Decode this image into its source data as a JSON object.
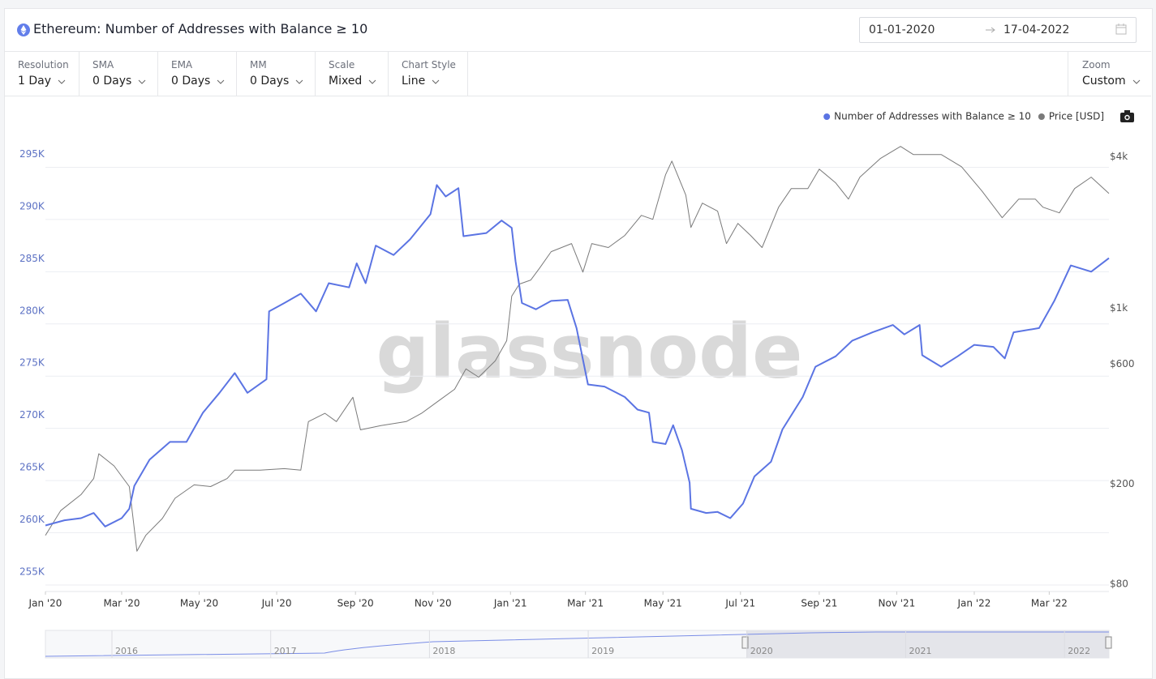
{
  "header": {
    "title": "Ethereum: Number of Addresses with Balance ≥ 10"
  },
  "date_range": {
    "start": "01-01-2020",
    "end": "17-04-2022"
  },
  "toolbar": [
    {
      "label": "Resolution",
      "value": "1 Day"
    },
    {
      "label": "SMA",
      "value": "0 Days"
    },
    {
      "label": "EMA",
      "value": "0 Days"
    },
    {
      "label": "MM",
      "value": "0 Days"
    },
    {
      "label": "Scale",
      "value": "Mixed"
    },
    {
      "label": "Chart Style",
      "value": "Line"
    }
  ],
  "zoom": {
    "label": "Zoom",
    "value": "Custom"
  },
  "watermark": "glassnode",
  "navigator": {
    "labels": [
      "2016",
      "2017",
      "2018",
      "2019",
      "2020",
      "2021",
      "2022"
    ]
  },
  "chart_data": {
    "type": "line",
    "xlim": [
      "2020-01-01",
      "2022-04-17"
    ],
    "xticks": [
      {
        "value": "2020-01-01",
        "label": "Jan '20"
      },
      {
        "value": "2020-03-01",
        "label": "Mar '20"
      },
      {
        "value": "2020-05-01",
        "label": "May '20"
      },
      {
        "value": "2020-07-01",
        "label": "Jul '20"
      },
      {
        "value": "2020-09-01",
        "label": "Sep '20"
      },
      {
        "value": "2020-11-01",
        "label": "Nov '20"
      },
      {
        "value": "2021-01-01",
        "label": "Jan '21"
      },
      {
        "value": "2021-03-01",
        "label": "Mar '21"
      },
      {
        "value": "2021-05-01",
        "label": "May '21"
      },
      {
        "value": "2021-07-01",
        "label": "Jul '21"
      },
      {
        "value": "2021-09-01",
        "label": "Sep '21"
      },
      {
        "value": "2021-11-01",
        "label": "Nov '21"
      },
      {
        "value": "2022-01-01",
        "label": "Jan '22"
      },
      {
        "value": "2022-03-01",
        "label": "Mar '22"
      }
    ],
    "ylim": [
      255000,
      300000
    ],
    "yticks": [
      {
        "value": 255000,
        "label": "255K"
      },
      {
        "value": 260000,
        "label": "260K"
      },
      {
        "value": 265000,
        "label": "265K"
      },
      {
        "value": 270000,
        "label": "270K"
      },
      {
        "value": 275000,
        "label": "275K"
      },
      {
        "value": 280000,
        "label": "280K"
      },
      {
        "value": 285000,
        "label": "285K"
      },
      {
        "value": 290000,
        "label": "290K"
      },
      {
        "value": 295000,
        "label": "295K"
      }
    ],
    "y2lim": [
      80,
      5900
    ],
    "y2log": true,
    "y2ticks": [
      {
        "value": 80,
        "label": "$80"
      },
      {
        "value": 200,
        "label": "$200"
      },
      {
        "value": 600,
        "label": "$600"
      },
      {
        "value": 1000,
        "label": "$1k"
      },
      {
        "value": 4000,
        "label": "$4k"
      }
    ],
    "grid": true,
    "legend": "top-right",
    "series": [
      {
        "name": "Number of Addresses with Balance ≥ 10",
        "color": "#5b74e3",
        "x": [
          "2020-01-01",
          "2020-01-16",
          "2020-01-29",
          "2020-02-08",
          "2020-02-17",
          "2020-03-01",
          "2020-03-07",
          "2020-03-11",
          "2020-03-23",
          "2020-04-08",
          "2020-04-21",
          "2020-05-04",
          "2020-05-17",
          "2020-05-29",
          "2020-06-08",
          "2020-06-23",
          "2020-06-25",
          "2020-07-07",
          "2020-07-20",
          "2020-08-01",
          "2020-08-11",
          "2020-08-27",
          "2020-09-02",
          "2020-09-09",
          "2020-09-17",
          "2020-10-01",
          "2020-10-14",
          "2020-10-30",
          "2020-11-04",
          "2020-11-11",
          "2020-11-21",
          "2020-11-25",
          "2020-12-13",
          "2020-12-25",
          "2021-01-02",
          "2021-01-05",
          "2021-01-10",
          "2021-01-21",
          "2021-02-02",
          "2021-02-15",
          "2021-02-22",
          "2021-03-03",
          "2021-03-16",
          "2021-04-01",
          "2021-04-11",
          "2021-04-20",
          "2021-04-23",
          "2021-05-03",
          "2021-05-09",
          "2021-05-16",
          "2021-05-22",
          "2021-05-23",
          "2021-06-04",
          "2021-06-13",
          "2021-06-23",
          "2021-07-03",
          "2021-07-12",
          "2021-07-25",
          "2021-08-03",
          "2021-08-19",
          "2021-08-29",
          "2021-09-14",
          "2021-09-27",
          "2021-10-13",
          "2021-10-29",
          "2021-11-07",
          "2021-11-19",
          "2021-11-21",
          "2021-12-06",
          "2021-12-19",
          "2022-01-01",
          "2022-01-16",
          "2022-01-25",
          "2022-02-01",
          "2022-02-21",
          "2022-03-05",
          "2022-03-18",
          "2022-04-03",
          "2022-04-17"
        ],
        "values": [
          260700,
          261200,
          261400,
          261900,
          260600,
          261400,
          262300,
          264500,
          267000,
          268700,
          268700,
          271500,
          273400,
          275300,
          273400,
          274700,
          281200,
          282000,
          282900,
          281200,
          283900,
          283500,
          285800,
          283900,
          287500,
          286600,
          288100,
          290500,
          293300,
          292200,
          293000,
          288400,
          288700,
          289900,
          289200,
          286000,
          282000,
          281400,
          282200,
          282300,
          279600,
          274200,
          274000,
          273000,
          271800,
          271500,
          268700,
          268500,
          270300,
          267900,
          264800,
          262300,
          261900,
          262000,
          261400,
          262800,
          265400,
          266800,
          269900,
          273000,
          275900,
          276900,
          278400,
          279200,
          279900,
          279000,
          279900,
          277000,
          275900,
          276900,
          278000,
          277800,
          276700,
          279200,
          279600,
          282200,
          285600,
          285000,
          286300
        ]
      },
      {
        "name": "Price [USD]",
        "color": "#7a7a7a",
        "axis": "y2",
        "x": [
          "2020-01-01",
          "2020-01-13",
          "2020-01-29",
          "2020-02-08",
          "2020-02-12",
          "2020-02-24",
          "2020-03-07",
          "2020-03-13",
          "2020-03-20",
          "2020-04-02",
          "2020-04-12",
          "2020-04-27",
          "2020-05-10",
          "2020-05-23",
          "2020-05-29",
          "2020-06-18",
          "2020-07-07",
          "2020-07-20",
          "2020-07-26",
          "2020-08-08",
          "2020-08-17",
          "2020-08-30",
          "2020-09-05",
          "2020-09-21",
          "2020-10-11",
          "2020-10-23",
          "2020-11-05",
          "2020-11-18",
          "2020-11-27",
          "2020-12-07",
          "2020-12-20",
          "2020-12-29",
          "2021-01-02",
          "2021-01-08",
          "2021-01-17",
          "2021-01-24",
          "2021-02-02",
          "2021-02-18",
          "2021-02-27",
          "2021-03-06",
          "2021-03-19",
          "2021-04-01",
          "2021-04-14",
          "2021-04-23",
          "2021-05-03",
          "2021-05-08",
          "2021-05-19",
          "2021-05-23",
          "2021-06-01",
          "2021-06-13",
          "2021-06-20",
          "2021-06-29",
          "2021-07-09",
          "2021-07-18",
          "2021-07-31",
          "2021-08-10",
          "2021-08-23",
          "2021-09-01",
          "2021-09-14",
          "2021-09-24",
          "2021-10-03",
          "2021-10-19",
          "2021-11-04",
          "2021-11-14",
          "2021-11-23",
          "2021-12-06",
          "2021-12-22",
          "2022-01-07",
          "2022-01-23",
          "2022-02-05",
          "2022-02-18",
          "2022-02-24",
          "2022-03-09",
          "2022-03-21",
          "2022-04-03",
          "2022-04-17"
        ],
        "values": [
          126,
          158,
          183,
          212,
          266,
          238,
          197,
          109,
          126,
          147,
          177,
          200,
          197,
          212,
          229,
          229,
          232,
          229,
          357,
          385,
          357,
          446,
          331,
          344,
          357,
          385,
          430,
          480,
          578,
          536,
          622,
          748,
          1125,
          1256,
          1304,
          1456,
          1690,
          1820,
          1402,
          1820,
          1755,
          1960,
          2356,
          2272,
          3415,
          3872,
          2836,
          2110,
          2636,
          2448,
          1820,
          2190,
          1960,
          1755,
          2540,
          3012,
          3012,
          3597,
          3170,
          2735,
          3343,
          3962,
          4428,
          4111,
          4111,
          4111,
          3675,
          2946,
          2306,
          2735,
          2735,
          2540,
          2410,
          3012,
          3343,
          2878
        ]
      }
    ]
  }
}
